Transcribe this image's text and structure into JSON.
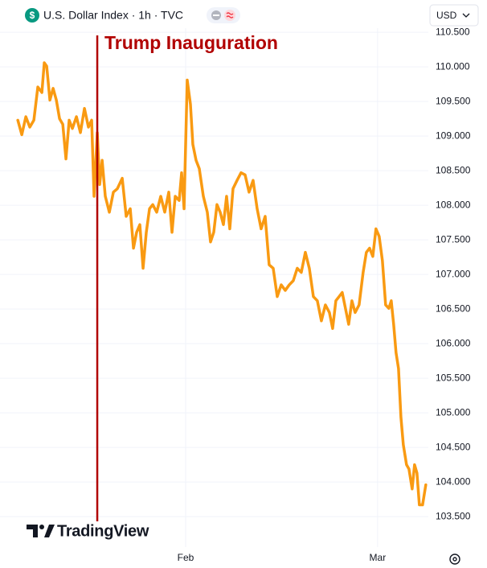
{
  "chart_data": {
    "type": "line",
    "title": "U.S. Dollar Index · 1h · TVC",
    "currency": "USD",
    "brand": "TradingView",
    "color": "#f99a12",
    "annotation": {
      "label": "Trump Inauguration",
      "x": 19.11,
      "color": "#b10000"
    },
    "grid": true,
    "xlim": [
      7.5,
      67.4
    ],
    "xticks": [
      {
        "value": 32,
        "label": "Feb"
      },
      {
        "value": 60,
        "label": "Mar"
      }
    ],
    "ylim": [
      103.06,
      110.56
    ],
    "yticks": [
      {
        "value": 103.5,
        "label": "103.500"
      },
      {
        "value": 104,
        "label": "104.000"
      },
      {
        "value": 104.5,
        "label": "104.500"
      },
      {
        "value": 105,
        "label": "105.000"
      },
      {
        "value": 105.5,
        "label": "105.500"
      },
      {
        "value": 106,
        "label": "106.000"
      },
      {
        "value": 106.5,
        "label": "106.500"
      },
      {
        "value": 107,
        "label": "107.000"
      },
      {
        "value": 107.5,
        "label": "107.500"
      },
      {
        "value": 108,
        "label": "108.000"
      },
      {
        "value": 108.5,
        "label": "108.500"
      },
      {
        "value": 109,
        "label": "109.000"
      },
      {
        "value": 109.5,
        "label": "109.500"
      },
      {
        "value": 110,
        "label": "110.000"
      },
      {
        "value": 110.5,
        "label": "110.500"
      }
    ],
    "x": [
      7.52,
      8.1,
      8.69,
      9.27,
      9.86,
      10.44,
      11.03,
      11.38,
      11.73,
      12.2,
      12.67,
      13.14,
      13.61,
      14.08,
      14.54,
      15.01,
      15.48,
      16.07,
      16.65,
      17.24,
      17.82,
      18.29,
      18.64,
      19.11,
      19.46,
      19.82,
      20.28,
      20.87,
      21.46,
      22.04,
      22.75,
      23.33,
      23.92,
      24.39,
      24.85,
      25.32,
      25.79,
      26.26,
      26.73,
      27.2,
      27.78,
      28.37,
      28.95,
      29.54,
      30.01,
      30.48,
      31.06,
      31.41,
      31.77,
      32.23,
      32.7,
      33.05,
      33.52,
      33.99,
      34.58,
      35.16,
      35.63,
      36.1,
      36.57,
      37.04,
      37.51,
      37.97,
      38.44,
      38.91,
      39.5,
      40.08,
      40.67,
      41.25,
      41.84,
      42.43,
      43.01,
      43.6,
      44.18,
      44.77,
      45.36,
      45.94,
      46.53,
      47.11,
      47.7,
      48.28,
      48.87,
      49.46,
      50.04,
      50.63,
      51.21,
      51.8,
      52.38,
      52.97,
      53.44,
      53.91,
      54.38,
      54.84,
      55.31,
      55.78,
      56.25,
      56.72,
      57.3,
      57.89,
      58.36,
      58.83,
      59.3,
      59.76,
      60.23,
      60.7,
      61.17,
      61.64,
      61.99,
      62.34,
      62.69,
      63.05,
      63.4,
      63.75,
      64.22,
      64.57,
      65.04,
      65.39,
      65.74,
      66.09,
      66.56,
      67.03
    ],
    "values": [
      109.23,
      109.02,
      109.28,
      109.13,
      109.23,
      109.71,
      109.63,
      110.06,
      110.01,
      109.52,
      109.69,
      109.52,
      109.25,
      109.17,
      108.67,
      109.23,
      109.11,
      109.28,
      109.05,
      109.4,
      109.13,
      109.23,
      108.13,
      109.05,
      108.3,
      108.65,
      108.13,
      107.9,
      108.19,
      108.24,
      108.39,
      107.84,
      107.95,
      107.38,
      107.61,
      107.72,
      107.09,
      107.61,
      107.95,
      108.01,
      107.9,
      108.13,
      107.9,
      108.19,
      107.61,
      108.13,
      108.07,
      108.47,
      107.95,
      109.81,
      109.46,
      108.88,
      108.65,
      108.53,
      108.13,
      107.9,
      107.47,
      107.61,
      108.01,
      107.9,
      107.72,
      108.13,
      107.66,
      108.24,
      108.36,
      108.47,
      108.44,
      108.19,
      108.36,
      107.95,
      107.66,
      107.84,
      107.14,
      107.09,
      106.68,
      106.85,
      106.77,
      106.85,
      106.91,
      107.09,
      107.03,
      107.32,
      107.09,
      106.68,
      106.62,
      106.33,
      106.56,
      106.45,
      106.22,
      106.62,
      106.68,
      106.74,
      106.51,
      106.28,
      106.62,
      106.45,
      106.56,
      107.03,
      107.32,
      107.38,
      107.26,
      107.66,
      107.55,
      107.2,
      106.56,
      106.51,
      106.62,
      106.28,
      105.87,
      105.64,
      104.94,
      104.54,
      104.25,
      104.19,
      103.9,
      104.25,
      104.13,
      103.67,
      103.67,
      103.96
    ]
  }
}
